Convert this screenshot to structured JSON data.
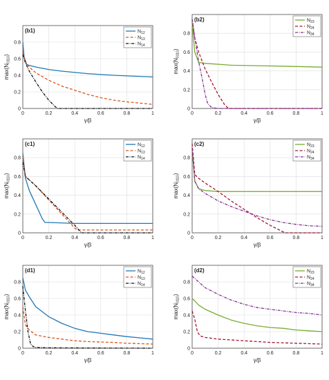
{
  "chart_data": [
    {
      "panel": "(b1)",
      "type": "line",
      "xlabel": "γ/β",
      "ylabel": "max(N0110)",
      "xlim": [
        0,
        1
      ],
      "ylim": [
        0,
        1
      ],
      "xticks": [
        "0",
        "0.2",
        "0.4",
        "0.6",
        "0.8",
        "1"
      ],
      "yticks": [
        "0",
        "0.2",
        "0.4",
        "0.6",
        "0.8"
      ],
      "grid": true,
      "legend": "top-right",
      "series": [
        {
          "name": "N12",
          "color": "#1f77b4",
          "style": "solid",
          "x": [
            0,
            0.01,
            0.03,
            0.05,
            0.1,
            0.2,
            0.3,
            0.5,
            0.7,
            1.0
          ],
          "y": [
            0.8,
            0.62,
            0.53,
            0.52,
            0.5,
            0.47,
            0.45,
            0.42,
            0.4,
            0.38
          ]
        },
        {
          "name": "N13",
          "color": "#d95319",
          "style": "dashed",
          "x": [
            0,
            0.02,
            0.05,
            0.1,
            0.2,
            0.3,
            0.4,
            0.5,
            0.6,
            0.7,
            0.8,
            0.9,
            1.0
          ],
          "y": [
            0.68,
            0.56,
            0.5,
            0.43,
            0.34,
            0.27,
            0.22,
            0.17,
            0.13,
            0.1,
            0.08,
            0.065,
            0.05
          ]
        },
        {
          "name": "N14",
          "color": "#111111",
          "style": "dashdot",
          "x": [
            0,
            0.02,
            0.05,
            0.1,
            0.15,
            0.2,
            0.25,
            0.27,
            1.0
          ],
          "y": [
            0.65,
            0.55,
            0.45,
            0.32,
            0.2,
            0.1,
            0.02,
            0,
            0
          ]
        }
      ]
    },
    {
      "panel": "(b2)",
      "type": "line",
      "xlabel": "γ/β",
      "ylabel": "max(N0110)",
      "xlim": [
        0,
        1
      ],
      "ylim": [
        0,
        1
      ],
      "xticks": [
        "0",
        "0.2",
        "0.4",
        "0.6",
        "0.8",
        "1"
      ],
      "yticks": [
        "0",
        "0.2",
        "0.4",
        "0.6",
        "0.8"
      ],
      "grid": true,
      "legend": "top-right",
      "series": [
        {
          "name": "N23",
          "color": "#77ac30",
          "style": "solid",
          "x": [
            0,
            0.02,
            0.05,
            0.1,
            0.3,
            0.5,
            0.7,
            1.0
          ],
          "y": [
            0.9,
            0.6,
            0.49,
            0.48,
            0.46,
            0.455,
            0.45,
            0.44
          ]
        },
        {
          "name": "N24",
          "color": "#a2142f",
          "style": "dashed",
          "x": [
            0,
            0.02,
            0.05,
            0.1,
            0.15,
            0.2,
            0.25,
            0.28,
            1.0
          ],
          "y": [
            0.95,
            0.75,
            0.6,
            0.42,
            0.28,
            0.15,
            0.04,
            0,
            0
          ]
        },
        {
          "name": "N34",
          "color": "#7e2f8e",
          "style": "dashdot",
          "x": [
            0,
            0.02,
            0.05,
            0.08,
            0.1,
            0.12,
            0.15,
            0.2,
            1.0
          ],
          "y": [
            0.95,
            0.75,
            0.5,
            0.3,
            0.15,
            0.05,
            0.01,
            0,
            0
          ]
        }
      ]
    },
    {
      "panel": "(c1)",
      "type": "line",
      "xlabel": "γ/β",
      "ylabel": "max(N0110)",
      "xlim": [
        0,
        1
      ],
      "ylim": [
        0,
        1
      ],
      "xticks": [
        "0",
        "0.2",
        "0.4",
        "0.6",
        "0.8",
        "1"
      ],
      "yticks": [
        "0",
        "0.2",
        "0.4",
        "0.6",
        "0.8"
      ],
      "grid": true,
      "legend": "top-right",
      "series": [
        {
          "name": "N12",
          "color": "#1f77b4",
          "style": "solid",
          "x": [
            0,
            0.02,
            0.05,
            0.1,
            0.15,
            0.17,
            0.2,
            0.4,
            0.6,
            1.0
          ],
          "y": [
            0.85,
            0.58,
            0.45,
            0.3,
            0.15,
            0.11,
            0.11,
            0.1,
            0.1,
            0.1
          ]
        },
        {
          "name": "N13",
          "color": "#d95319",
          "style": "dashed",
          "x": [
            0,
            0.02,
            0.1,
            0.2,
            0.3,
            0.4,
            0.42,
            1.0
          ],
          "y": [
            0.8,
            0.6,
            0.5,
            0.35,
            0.2,
            0.05,
            0.03,
            0.03
          ]
        },
        {
          "name": "N14",
          "color": "#111111",
          "style": "dashdot",
          "x": [
            0,
            0.02,
            0.1,
            0.2,
            0.3,
            0.4,
            0.45,
            1.0
          ],
          "y": [
            0.75,
            0.6,
            0.5,
            0.36,
            0.22,
            0.08,
            0,
            0
          ]
        }
      ]
    },
    {
      "panel": "(c2)",
      "type": "line",
      "xlabel": "γ/β",
      "ylabel": "max(N0110)",
      "xlim": [
        0,
        1
      ],
      "ylim": [
        0,
        1
      ],
      "xticks": [
        "0",
        "0.2",
        "0.4",
        "0.6",
        "0.8",
        "1"
      ],
      "yticks": [
        "0",
        "0.2",
        "0.4",
        "0.6",
        "0.8"
      ],
      "grid": true,
      "legend": "top-right",
      "series": [
        {
          "name": "N23",
          "color": "#77ac30",
          "style": "solid",
          "x": [
            0,
            0.02,
            0.05,
            0.1,
            0.2,
            0.4,
            0.6,
            1.0
          ],
          "y": [
            0.9,
            0.55,
            0.47,
            0.45,
            0.44,
            0.44,
            0.44,
            0.44
          ]
        },
        {
          "name": "N24",
          "color": "#a2142f",
          "style": "dashed",
          "x": [
            0,
            0.02,
            0.05,
            0.1,
            0.2,
            0.3,
            0.4,
            0.5,
            0.6,
            0.7,
            0.72,
            1.0
          ],
          "y": [
            0.95,
            0.62,
            0.58,
            0.53,
            0.44,
            0.34,
            0.25,
            0.16,
            0.08,
            0.01,
            0,
            0
          ]
        },
        {
          "name": "N34",
          "color": "#7e2f8e",
          "style": "dashdot",
          "x": [
            0,
            0.02,
            0.05,
            0.1,
            0.2,
            0.3,
            0.4,
            0.5,
            0.6,
            0.7,
            0.8,
            0.9,
            1.0
          ],
          "y": [
            0.9,
            0.55,
            0.47,
            0.42,
            0.34,
            0.28,
            0.23,
            0.18,
            0.14,
            0.11,
            0.09,
            0.075,
            0.07
          ]
        }
      ]
    },
    {
      "panel": "(d1)",
      "type": "line",
      "xlabel": "γ/β",
      "ylabel": "max(N0110)",
      "xlim": [
        0,
        1
      ],
      "ylim": [
        0,
        1
      ],
      "xticks": [
        "0",
        "0.2",
        "0.4",
        "0.6",
        "0.8",
        "1"
      ],
      "yticks": [
        "0",
        "0.2",
        "0.4",
        "0.6",
        "0.8"
      ],
      "grid": true,
      "legend": "top-right",
      "series": [
        {
          "name": "N12",
          "color": "#1f77b4",
          "style": "solid",
          "x": [
            0,
            0.02,
            0.05,
            0.1,
            0.2,
            0.3,
            0.4,
            0.5,
            0.6,
            0.7,
            0.8,
            0.9,
            1.0
          ],
          "y": [
            0.85,
            0.7,
            0.62,
            0.5,
            0.38,
            0.3,
            0.24,
            0.2,
            0.18,
            0.16,
            0.14,
            0.125,
            0.11
          ]
        },
        {
          "name": "N13",
          "color": "#d95319",
          "style": "dashed",
          "x": [
            0,
            0.02,
            0.05,
            0.1,
            0.2,
            0.3,
            0.4,
            0.5,
            0.6,
            0.7,
            0.8,
            0.9,
            1.0
          ],
          "y": [
            0.5,
            0.28,
            0.22,
            0.16,
            0.13,
            0.11,
            0.09,
            0.08,
            0.075,
            0.07,
            0.06,
            0.055,
            0.05
          ]
        },
        {
          "name": "N14",
          "color": "#111111",
          "style": "dashdot",
          "x": [
            0,
            0.02,
            0.04,
            0.06,
            0.08,
            0.1,
            0.2,
            1.0
          ],
          "y": [
            0.75,
            0.45,
            0.2,
            0.05,
            0.02,
            0.01,
            0.005,
            0
          ]
        }
      ]
    },
    {
      "panel": "(d2)",
      "type": "line",
      "xlabel": "γ/β",
      "ylabel": "max(N0110)",
      "xlim": [
        0,
        1
      ],
      "ylim": [
        0,
        1
      ],
      "xticks": [
        "0",
        "0.2",
        "0.4",
        "0.6",
        "0.8",
        "1"
      ],
      "yticks": [
        "0",
        "0.2",
        "0.4",
        "0.6",
        "0.8"
      ],
      "grid": true,
      "legend": "top-right",
      "series": [
        {
          "name": "N23",
          "color": "#77ac30",
          "style": "solid",
          "x": [
            0,
            0.02,
            0.05,
            0.1,
            0.2,
            0.3,
            0.4,
            0.5,
            0.6,
            0.7,
            0.8,
            0.9,
            1.0
          ],
          "y": [
            0.6,
            0.57,
            0.52,
            0.47,
            0.4,
            0.34,
            0.3,
            0.27,
            0.25,
            0.24,
            0.22,
            0.21,
            0.2
          ]
        },
        {
          "name": "N24",
          "color": "#a2142f",
          "style": "dashed",
          "x": [
            0,
            0.02,
            0.04,
            0.06,
            0.08,
            0.1,
            0.2,
            0.4,
            0.6,
            0.8,
            1.0
          ],
          "y": [
            0.45,
            0.35,
            0.2,
            0.15,
            0.14,
            0.13,
            0.11,
            0.09,
            0.07,
            0.06,
            0.05
          ]
        },
        {
          "name": "N34",
          "color": "#7e2f8e",
          "style": "dashdot",
          "x": [
            0,
            0.05,
            0.1,
            0.2,
            0.3,
            0.4,
            0.5,
            0.6,
            0.7,
            0.8,
            0.9,
            1.0
          ],
          "y": [
            0.87,
            0.8,
            0.73,
            0.65,
            0.58,
            0.53,
            0.49,
            0.47,
            0.45,
            0.43,
            0.42,
            0.4
          ]
        }
      ]
    }
  ]
}
